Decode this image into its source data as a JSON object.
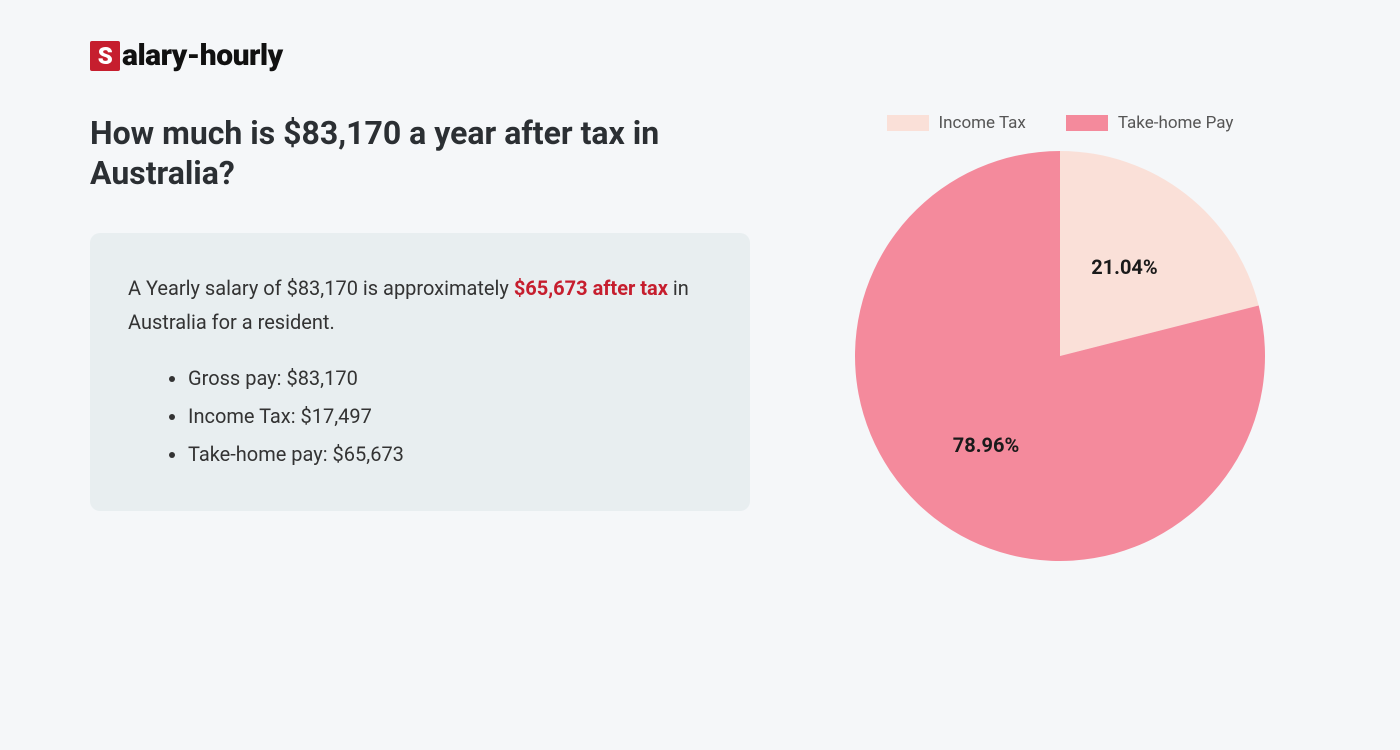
{
  "logo": {
    "s": "S",
    "rest": "alary-hourly"
  },
  "heading": "How much is $83,170 a year after tax in Australia?",
  "summary": {
    "text_pre": "A Yearly salary of $83,170 is approximately ",
    "text_highlight": "$65,673 after tax",
    "text_post": " in Australia for a resident.",
    "bullets": [
      "Gross pay: $83,170",
      "Income Tax: $17,497",
      "Take-home pay: $65,673"
    ]
  },
  "chart": {
    "type": "pie",
    "legend": [
      {
        "label": "Income Tax",
        "color": "#fae0d8"
      },
      {
        "label": "Take-home Pay",
        "color": "#f48a9c"
      }
    ],
    "slices": [
      {
        "label": "21.04%",
        "value": 21.04,
        "color": "#fae0d8"
      },
      {
        "label": "78.96%",
        "value": 78.96,
        "color": "#f48a9c"
      }
    ],
    "background_color": "#f5f7f9",
    "label_fontsize": 20,
    "label_color": "#1a1a1a",
    "diameter": 410
  }
}
